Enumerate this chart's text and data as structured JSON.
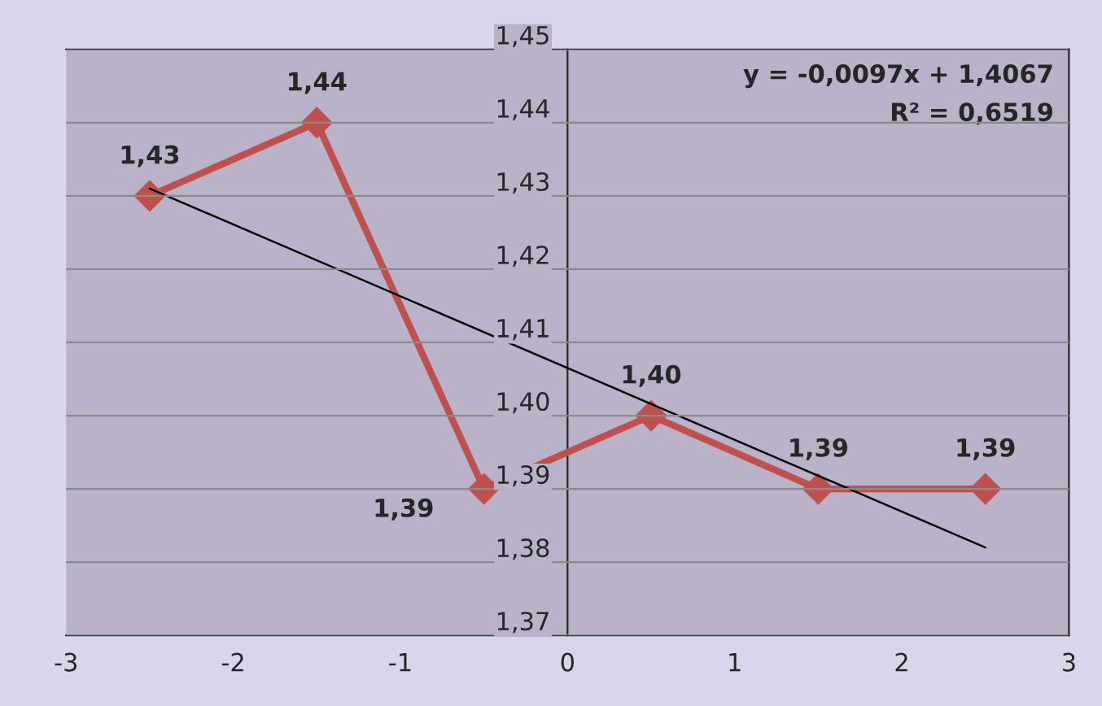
{
  "chart_data": {
    "type": "line",
    "xlim": [
      -3,
      3
    ],
    "ylim": [
      1.37,
      1.45
    ],
    "xticks": [
      {
        "value": -3,
        "label": "-3"
      },
      {
        "value": -2,
        "label": "-2"
      },
      {
        "value": -1,
        "label": "-1"
      },
      0,
      1,
      2,
      3
    ],
    "yticks": [
      {
        "value": 1.37,
        "label": "1,37"
      },
      {
        "value": 1.38,
        "label": "1,38"
      },
      {
        "value": 1.39,
        "label": "1,39"
      },
      {
        "value": 1.4,
        "label": "1,40"
      },
      {
        "value": 1.41,
        "label": "1,41"
      },
      {
        "value": 1.42,
        "label": "1,42"
      },
      {
        "value": 1.43,
        "label": "1,43"
      },
      {
        "value": 1.44,
        "label": "1,44"
      },
      {
        "value": 1.45,
        "label": "1,45"
      }
    ],
    "grid": "y",
    "marker": "diamond",
    "line_style": "solid",
    "series": [
      {
        "color": "#c0504d",
        "x": [
          -2.5,
          -1.5,
          -0.5,
          0.5,
          1.5,
          2.5
        ],
        "values": [
          1.43,
          1.44,
          1.39,
          1.4,
          1.39,
          1.39
        ],
        "value_labels": [
          "1,43",
          "1,44",
          "1,39",
          "1,40",
          "1,39",
          "1,39"
        ]
      },
      {
        "type": "line",
        "color": "#000000",
        "x": [
          -2.5,
          2.5
        ],
        "values": [
          1.431,
          1.382
        ],
        "marker": "none"
      }
    ],
    "annotations": [
      "y = -0,0097x + 1,4067",
      "R² = 0,6519"
    ]
  }
}
